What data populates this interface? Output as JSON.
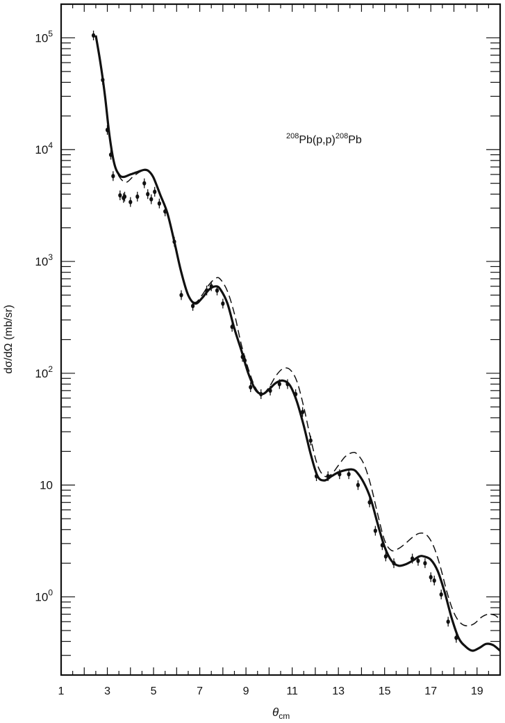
{
  "chart_data": {
    "type": "scatter",
    "annotation": {
      "mass_pre": "208",
      "reaction": "Pb(p,p)",
      "mass_post": "208",
      "product": "Pb"
    },
    "xlabel": {
      "symbol": "θ",
      "subscript": "cm"
    },
    "ylabel": "dσ/dΩ (mb/sr)",
    "xlim": [
      1,
      20
    ],
    "ylim": [
      0.2,
      200000
    ],
    "yscale": "log",
    "x_ticks": [
      "1",
      "3",
      "5",
      "7",
      "9",
      "11",
      "13",
      "15",
      "17",
      "19"
    ],
    "y_ticks": [
      {
        "base": "10",
        "exp": "5",
        "value": 100000
      },
      {
        "base": "10",
        "exp": "4",
        "value": 10000
      },
      {
        "base": "10",
        "exp": "3",
        "value": 1000
      },
      {
        "base": "10",
        "exp": "2",
        "value": 100
      },
      {
        "base": "10",
        "exp": "",
        "value": 10
      },
      {
        "base": "10",
        "exp": "0",
        "value": 1
      }
    ],
    "grid": false,
    "series": [
      {
        "style": "points",
        "x": [
          2.4,
          2.8,
          3.0,
          3.15,
          3.25,
          3.55,
          3.7,
          3.75,
          4.0,
          4.3,
          4.6,
          4.75,
          4.9,
          5.05,
          5.25,
          5.5,
          5.9,
          6.2,
          6.7,
          7.3,
          7.5,
          7.75,
          8.0,
          8.4,
          8.85,
          8.95,
          9.2,
          9.65,
          10.05,
          10.45,
          10.8,
          11.15,
          11.45,
          11.8,
          12.05,
          12.55,
          13.05,
          13.45,
          13.85,
          14.35,
          14.6,
          14.9,
          15.05,
          15.4,
          16.2,
          16.45,
          16.75,
          17.0,
          17.15,
          17.45,
          17.75,
          18.1
        ],
        "y": [
          105000,
          42000,
          15000,
          9000,
          5800,
          3900,
          3700,
          3800,
          3400,
          3800,
          5000,
          4000,
          3600,
          4200,
          3300,
          2800,
          1500,
          500,
          400,
          550,
          600,
          550,
          420,
          260,
          140,
          130,
          75,
          65,
          70,
          80,
          80,
          65,
          45,
          25,
          12,
          12,
          12.5,
          12.5,
          10,
          7,
          3.9,
          2.9,
          2.3,
          2.0,
          2.2,
          2.1,
          2.0,
          1.5,
          1.4,
          1.05,
          0.6,
          0.43
        ]
      },
      {
        "style": "solid",
        "x": [
          2.5,
          2.7,
          2.9,
          3.1,
          3.3,
          3.5,
          3.7,
          4.0,
          4.3,
          4.6,
          4.8,
          5.0,
          5.3,
          5.6,
          5.9,
          6.2,
          6.5,
          6.8,
          7.1,
          7.4,
          7.7,
          7.9,
          8.2,
          8.5,
          8.8,
          9.1,
          9.4,
          9.7,
          10.0,
          10.3,
          10.6,
          10.9,
          11.2,
          11.5,
          11.8,
          12.1,
          12.4,
          12.7,
          13.0,
          13.3,
          13.6,
          13.8,
          14.1,
          14.4,
          14.7,
          15.0,
          15.3,
          15.6,
          15.9,
          16.2,
          16.5,
          16.7,
          17.0,
          17.3,
          17.6,
          17.9,
          18.2,
          18.5,
          18.8,
          19.1,
          19.4,
          19.7,
          20.0
        ],
        "y": [
          105000,
          60000,
          30000,
          13000,
          7500,
          6000,
          5700,
          6000,
          6300,
          6600,
          6400,
          5600,
          3900,
          2700,
          1500,
          800,
          500,
          420,
          470,
          560,
          600,
          560,
          420,
          250,
          160,
          100,
          72,
          65,
          72,
          82,
          86,
          78,
          56,
          34,
          19,
          12,
          11,
          12,
          13,
          13.6,
          13.8,
          13,
          10.5,
          7.5,
          4.5,
          2.8,
          2.1,
          1.9,
          1.95,
          2.1,
          2.3,
          2.3,
          2.15,
          1.7,
          1.1,
          0.65,
          0.43,
          0.36,
          0.33,
          0.35,
          0.38,
          0.37,
          0.33
        ]
      },
      {
        "style": "dashed",
        "x": [
          3.3,
          3.5,
          3.8,
          4.1,
          4.4,
          4.7,
          5.0,
          5.3,
          5.6,
          5.9,
          6.2,
          6.5,
          6.8,
          7.1,
          7.4,
          7.7,
          7.9,
          8.2,
          8.5,
          8.8,
          9.1,
          9.4,
          9.7,
          10.0,
          10.3,
          10.6,
          10.9,
          11.2,
          11.5,
          11.8,
          12.1,
          12.4,
          12.7,
          13.0,
          13.3,
          13.6,
          13.8,
          14.1,
          14.4,
          14.7,
          15.0,
          15.3,
          15.6,
          15.9,
          16.2,
          16.5,
          16.8,
          17.1,
          17.4,
          17.7,
          18.0,
          18.3,
          18.6,
          18.9,
          19.2,
          19.5,
          19.8,
          20.0
        ],
        "y": [
          7500,
          5800,
          5100,
          5700,
          6300,
          6600,
          5600,
          3900,
          2700,
          1500,
          800,
          500,
          430,
          500,
          620,
          710,
          690,
          540,
          340,
          180,
          110,
          75,
          65,
          75,
          95,
          110,
          108,
          85,
          50,
          26,
          15,
          12,
          12.5,
          15,
          18,
          19.5,
          19,
          15.5,
          10,
          5.5,
          3.2,
          2.6,
          2.7,
          3.0,
          3.4,
          3.7,
          3.6,
          2.9,
          1.9,
          1.1,
          0.72,
          0.58,
          0.55,
          0.58,
          0.66,
          0.7,
          0.68,
          0.62
        ]
      }
    ]
  }
}
